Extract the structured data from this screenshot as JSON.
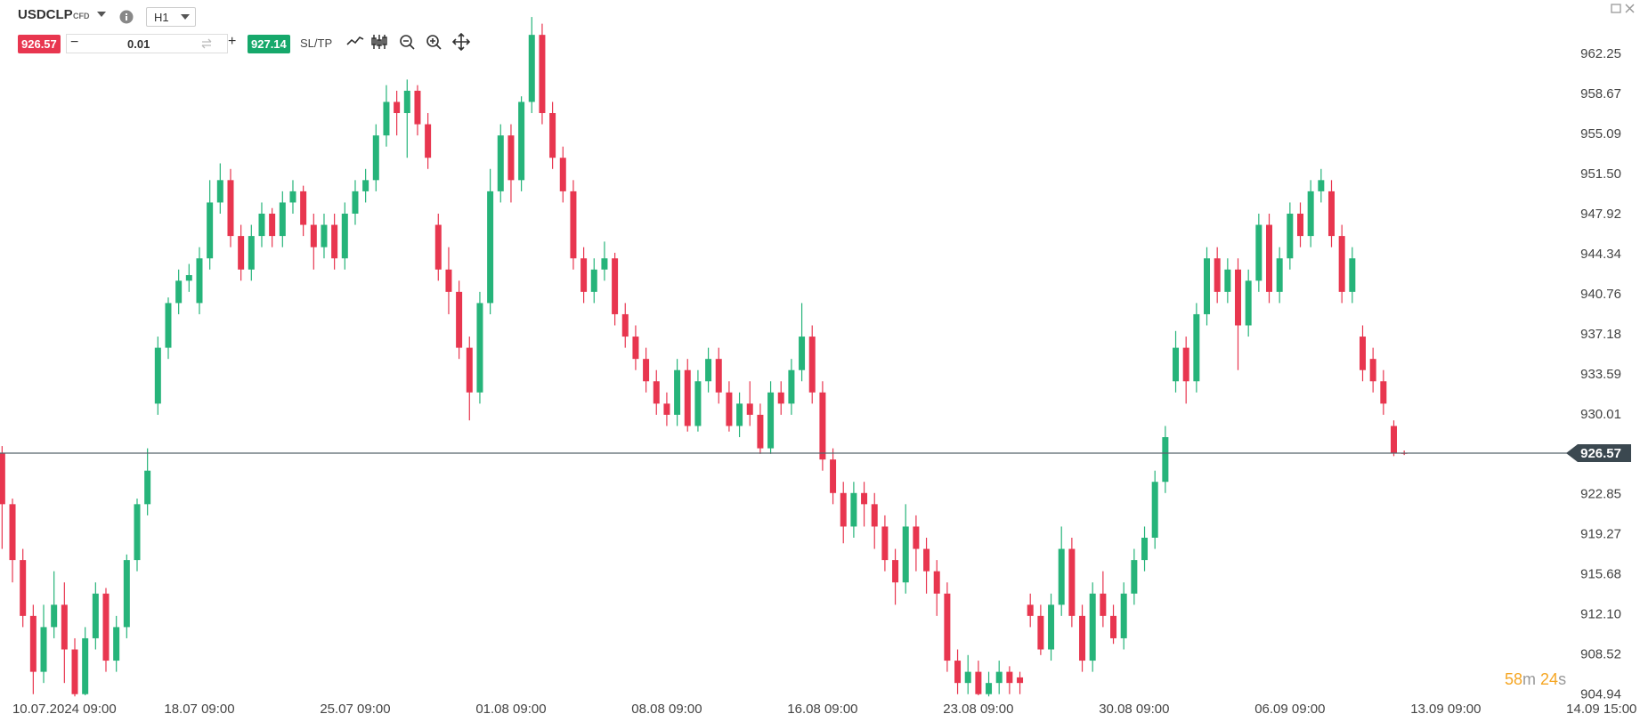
{
  "toolbar": {
    "symbol": "USDCLP",
    "instrument_type": "CFD",
    "timeframe": "H1",
    "sell_price": "926.57",
    "minus": "−",
    "quantity": "0.01",
    "plus": "+",
    "buy_price": "927.14",
    "sltp": "SL/TP",
    "timer": {
      "minutes": "58",
      "minutes_unit": "m",
      "seconds": "24",
      "seconds_unit": "s"
    }
  },
  "chart_data": {
    "type": "candlestick",
    "up_color": "#26b47a",
    "down_color": "#e8364f",
    "last_price": 926.57,
    "ylim": [
      904.5,
      967.12
    ],
    "yticks": [
      962.25,
      958.67,
      955.09,
      {
        "value": 951.5,
        "label": "951.50"
      },
      947.92,
      944.34,
      940.76,
      937.18,
      933.59,
      930.01,
      922.85,
      919.27,
      915.68,
      {
        "value": 912.1,
        "label": "912.10"
      },
      908.52,
      904.94
    ],
    "categories": [
      null,
      null,
      null,
      null,
      null,
      null,
      "10.07.2024 09:00",
      null,
      null,
      null,
      null,
      null,
      null,
      null,
      null,
      null,
      null,
      null,
      null,
      "18.07 09:00",
      null,
      null,
      null,
      null,
      null,
      null,
      null,
      null,
      null,
      null,
      null,
      null,
      null,
      null,
      "25.07 09:00",
      null,
      null,
      null,
      null,
      null,
      null,
      null,
      null,
      null,
      null,
      null,
      null,
      null,
      null,
      "01.08 09:00",
      null,
      null,
      null,
      null,
      null,
      null,
      null,
      null,
      null,
      null,
      null,
      null,
      null,
      null,
      "08.08 09:00",
      null,
      null,
      null,
      null,
      null,
      null,
      null,
      null,
      null,
      null,
      null,
      null,
      null,
      null,
      "16.08 09:00",
      null,
      null,
      null,
      null,
      null,
      null,
      null,
      null,
      null,
      null,
      null,
      null,
      null,
      null,
      "23.08 09:00",
      null,
      null,
      null,
      null,
      null,
      null,
      null,
      null,
      null,
      null,
      null,
      null,
      null,
      null,
      "30.08 09:00",
      null,
      null,
      null,
      null,
      null,
      null,
      null,
      null,
      null,
      null,
      null,
      null,
      null,
      null,
      "06.09 09:00",
      null,
      null,
      null,
      null,
      null,
      null,
      null,
      null,
      null,
      null,
      null,
      null,
      null,
      null,
      "13.09 09:00",
      null,
      null,
      null,
      null,
      null,
      null,
      null,
      null,
      null,
      null,
      null,
      null,
      null,
      null,
      "14.09 15:00"
    ],
    "open": [
      926.6,
      922,
      917,
      912,
      907,
      911,
      913,
      909,
      905,
      910,
      914,
      908,
      911,
      917,
      922,
      931,
      936,
      940,
      942,
      940,
      944,
      949,
      951,
      946,
      943,
      946,
      948,
      946,
      949,
      950,
      947,
      945,
      947,
      944,
      948,
      950,
      951,
      955,
      958,
      957,
      959,
      956,
      947,
      943,
      941,
      936,
      932,
      940,
      950,
      955,
      951,
      958,
      964,
      957,
      953,
      950,
      944,
      941,
      943,
      944,
      939,
      937,
      935,
      933,
      931,
      930,
      934,
      929,
      933,
      935,
      932,
      929,
      931,
      930,
      927,
      932,
      931,
      934,
      937,
      932,
      926,
      923,
      920,
      923,
      922,
      920,
      917,
      915,
      920,
      918,
      916,
      914,
      908,
      906,
      907,
      905,
      906,
      907,
      906.5,
      913,
      912,
      909,
      913,
      918,
      912,
      908,
      914,
      912,
      910,
      914,
      917,
      919,
      924,
      933,
      936,
      933,
      939,
      944,
      941,
      943,
      938,
      942,
      947,
      941,
      944,
      948,
      946,
      950,
      950,
      946,
      941,
      937,
      935,
      933,
      929,
      926.6,
      null,
      null,
      null,
      null,
      null,
      null,
      null,
      null,
      null,
      null,
      null,
      null,
      null,
      null,
      null,
      null,
      null,
      null,
      null
    ],
    "high": [
      927.2,
      922.5,
      918,
      913,
      913,
      916,
      915,
      910,
      911,
      915,
      914.5,
      912,
      917.5,
      922.5,
      927,
      937,
      940.5,
      943,
      943.5,
      945,
      951,
      952.5,
      952,
      947,
      947,
      949,
      948.5,
      950,
      951,
      950.5,
      948,
      948,
      948,
      949,
      951,
      952,
      956,
      959.5,
      959,
      960,
      959.5,
      957,
      948,
      945,
      942,
      937,
      941,
      952,
      956,
      956,
      958.5,
      965.6,
      965,
      958,
      954,
      951,
      945,
      944,
      945.5,
      944.5,
      940,
      938,
      936,
      934,
      932,
      935,
      935,
      934,
      936,
      936,
      933,
      932,
      933,
      931,
      933,
      933,
      935,
      940,
      938,
      933,
      927,
      924,
      924,
      924,
      923,
      921,
      918,
      922,
      921,
      919,
      917,
      915,
      909,
      908.5,
      908,
      907,
      908,
      907.5,
      907,
      914,
      913,
      914,
      920,
      919,
      913,
      915,
      916,
      913,
      915,
      918,
      920,
      925,
      929,
      937.5,
      937,
      940,
      945,
      945,
      944,
      944,
      943,
      948,
      948,
      945,
      949,
      949,
      951,
      952,
      951,
      947,
      945,
      938,
      936,
      934,
      929.5,
      926.8,
      null,
      null,
      null,
      null,
      null,
      null,
      null,
      null,
      null,
      null,
      null,
      null,
      null,
      null,
      null,
      null,
      null,
      null,
      null
    ],
    "low": [
      918,
      915,
      911,
      905,
      906,
      910,
      906,
      904.8,
      904.9,
      909,
      907,
      907,
      910,
      916,
      921,
      930,
      935,
      939,
      941,
      939,
      943,
      948,
      945,
      942,
      942,
      945,
      945,
      945,
      948,
      946,
      943,
      944,
      943,
      943,
      947,
      949,
      950,
      954,
      955,
      953,
      955,
      952,
      942,
      939,
      935,
      929.5,
      931,
      939,
      949,
      949,
      950,
      957,
      956,
      952,
      949,
      943,
      940,
      940,
      942,
      938,
      936,
      934,
      932,
      930,
      929,
      929,
      928.5,
      928.5,
      932,
      931,
      928.5,
      928,
      929,
      926.5,
      926.5,
      930,
      930,
      933,
      931,
      925,
      922,
      918.5,
      919,
      920,
      918,
      916,
      913,
      914,
      916,
      914,
      912,
      907,
      905,
      905,
      904.9,
      904.8,
      905,
      905,
      905,
      911,
      908.5,
      908,
      912,
      911,
      907,
      907,
      911,
      909.5,
      909,
      913,
      916,
      918,
      923,
      932,
      931,
      932,
      938,
      940,
      940,
      934,
      937,
      941,
      940,
      940,
      943,
      945,
      945,
      949,
      945,
      940,
      940,
      933,
      932,
      930,
      926.3,
      926.4,
      null,
      null,
      null,
      null,
      null,
      null,
      null,
      null,
      null,
      null,
      null,
      null,
      null,
      null,
      null,
      null,
      null,
      null,
      null
    ],
    "close": [
      922,
      917,
      912,
      907,
      911,
      913,
      909,
      905,
      910,
      914,
      908,
      911,
      917,
      922,
      925,
      936,
      940,
      942,
      942.5,
      944,
      949,
      951,
      946,
      943,
      946,
      948,
      946,
      949,
      950,
      947,
      945,
      947,
      944,
      948,
      950,
      951,
      955,
      958,
      957,
      959,
      956,
      953,
      943,
      941,
      936,
      932,
      940,
      950,
      955,
      951,
      958,
      964,
      957,
      953,
      950,
      944,
      941,
      943,
      944,
      939,
      937,
      935,
      933,
      931,
      930,
      934,
      929,
      933,
      935,
      932,
      929,
      931,
      930,
      927,
      932,
      931,
      934,
      937,
      932,
      926,
      923,
      920,
      923,
      922,
      920,
      917,
      915,
      920,
      918,
      916,
      914,
      908,
      906,
      907,
      905,
      906,
      907,
      906,
      906,
      912,
      909,
      913,
      918,
      912,
      908,
      914,
      912,
      910,
      914,
      917,
      919,
      924,
      928,
      936,
      933,
      939,
      944,
      941,
      943,
      938,
      942,
      947,
      941,
      944,
      948,
      946,
      950,
      951,
      946,
      941,
      944,
      934,
      933,
      931,
      926.6,
      926.57,
      null,
      null,
      null,
      null,
      null,
      null,
      null,
      null,
      null,
      null,
      null,
      null,
      null,
      null,
      null,
      null,
      null,
      null,
      null
    ]
  }
}
